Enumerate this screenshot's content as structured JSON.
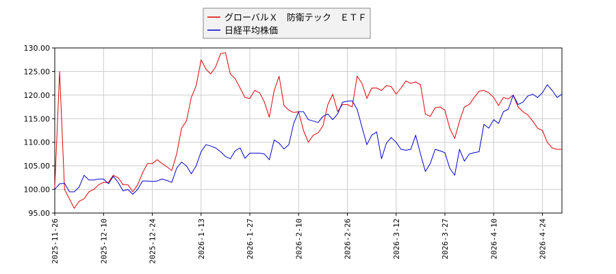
{
  "chart_data": {
    "type": "line",
    "ylim": [
      95,
      130
    ],
    "y_ticks": [
      "95.00",
      "100.00",
      "105.00",
      "110.00",
      "115.00",
      "120.00",
      "125.00",
      "130.00"
    ],
    "x_ticks": [
      {
        "label": "2025-11-26",
        "x": 0
      },
      {
        "label": "2025-12-10",
        "x": 10
      },
      {
        "label": "2025-12-24",
        "x": 20
      },
      {
        "label": "2026-1-13",
        "x": 30
      },
      {
        "label": "2026-1-27",
        "x": 40
      },
      {
        "label": "2026-2-10",
        "x": 50
      },
      {
        "label": "2026-2-26",
        "x": 60
      },
      {
        "label": "2026-3-12",
        "x": 70
      },
      {
        "label": "2026-3-27",
        "x": 80
      },
      {
        "label": "2026-4-10",
        "x": 90
      },
      {
        "label": "2026-4-24",
        "x": 100
      }
    ],
    "x_max": 104,
    "grid": true,
    "legend_position": "top-center",
    "series": [
      {
        "name": "グローバルＸ　防衛テック　ＥＴＦ",
        "color": "#dd0000",
        "values": [
          100.5,
          125.0,
          100.0,
          98.0,
          96.0,
          97.5,
          98.0,
          99.5,
          100.0,
          101.0,
          101.5,
          101.5,
          103.0,
          102.5,
          101.0,
          101.0,
          99.5,
          101.0,
          103.5,
          105.5,
          105.5,
          106.3,
          105.5,
          104.8,
          104.0,
          107.5,
          113.0,
          114.5,
          119.5,
          122.0,
          127.5,
          125.5,
          124.5,
          126.0,
          128.8,
          129.0,
          124.5,
          123.5,
          121.5,
          119.5,
          119.3,
          121.0,
          120.5,
          118.5,
          115.3,
          121.0,
          124.0,
          117.8,
          116.8,
          116.3,
          116.5,
          112.5,
          110.0,
          111.5,
          112.0,
          113.5,
          118.0,
          120.2,
          116.5,
          118.0,
          118.0,
          117.5,
          124.0,
          122.5,
          119.3,
          121.5,
          121.5,
          121.0,
          122.0,
          121.8,
          120.2,
          121.5,
          123.0,
          122.5,
          122.8,
          122.2,
          116.0,
          115.5,
          117.3,
          117.5,
          116.8,
          113.0,
          110.8,
          114.5,
          117.5,
          118.0,
          119.5,
          120.8,
          121.0,
          120.5,
          119.5,
          117.8,
          119.5,
          119.2,
          120.0,
          117.5,
          116.5,
          115.8,
          114.5,
          113.0,
          112.5,
          110.0,
          108.8,
          108.5,
          108.5
        ]
      },
      {
        "name": "日経平均株価",
        "color": "#0000cc",
        "values": [
          100.0,
          101.2,
          101.3,
          99.5,
          99.5,
          100.5,
          103.0,
          102.0,
          102.0,
          102.2,
          102.2,
          101.2,
          102.8,
          101.5,
          99.7,
          100.0,
          99.0,
          100.0,
          101.8,
          101.8,
          101.7,
          101.8,
          102.2,
          101.9,
          101.5,
          104.5,
          105.8,
          105.0,
          103.3,
          105.0,
          108.0,
          109.5,
          109.2,
          108.8,
          108.0,
          107.0,
          106.5,
          108.2,
          108.8,
          106.6,
          107.7,
          107.7,
          107.7,
          107.5,
          106.3,
          110.5,
          109.8,
          108.6,
          109.5,
          114.0,
          116.5,
          116.5,
          114.8,
          114.5,
          114.2,
          115.5,
          116.0,
          114.8,
          116.0,
          118.5,
          118.7,
          118.8,
          117.0,
          113.2,
          109.5,
          111.5,
          112.2,
          106.5,
          109.8,
          111.0,
          110.0,
          108.5,
          108.3,
          108.5,
          111.5,
          107.5,
          103.8,
          105.5,
          108.5,
          108.2,
          107.8,
          104.5,
          103.0,
          108.5,
          106.0,
          107.5,
          107.8,
          108.0,
          113.8,
          113.0,
          114.8,
          114.0,
          116.5,
          117.0,
          120.0,
          118.0,
          118.5,
          119.8,
          120.2,
          119.5,
          120.5,
          122.2,
          121.0,
          119.5,
          120.2
        ]
      }
    ]
  }
}
